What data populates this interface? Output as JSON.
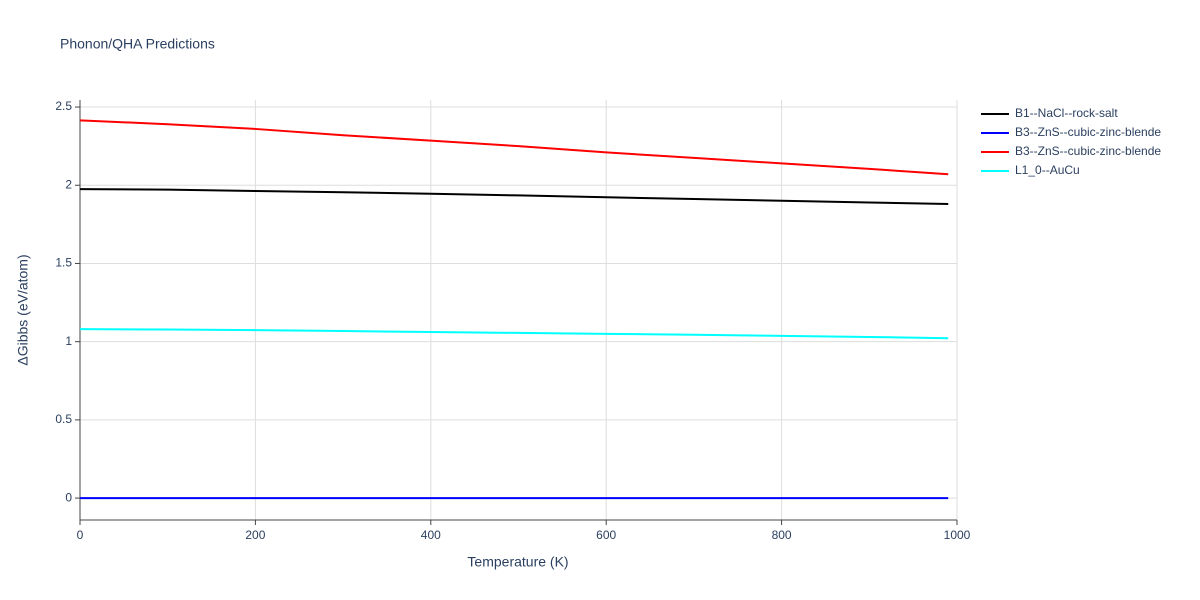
{
  "chart_data": {
    "type": "line",
    "title": "Phonon/QHA Predictions",
    "x_label": "Temperature (K)",
    "y_label": "ΔGibbs (eV/atom)",
    "x": [
      0,
      100,
      200,
      300,
      400,
      500,
      600,
      700,
      800,
      900,
      990
    ],
    "series": [
      {
        "name": "B1--NaCl--rock-salt",
        "color": "#000000",
        "values": [
          1.975,
          1.972,
          1.963,
          1.955,
          1.946,
          1.935,
          1.923,
          1.912,
          1.901,
          1.89,
          1.88
        ]
      },
      {
        "name": "B3--ZnS--cubic-zinc-blende",
        "color": "#0000ff",
        "values": [
          0,
          0,
          0,
          0,
          0,
          0,
          0,
          0,
          0,
          0,
          0
        ]
      },
      {
        "name": "B3--ZnS--cubic-zinc-blende",
        "color": "#ff0000",
        "values": [
          2.415,
          2.39,
          2.36,
          2.32,
          2.285,
          2.25,
          2.21,
          2.175,
          2.14,
          2.105,
          2.07
        ]
      },
      {
        "name": "L1_0--AuCu",
        "color": "#00ffff",
        "values": [
          1.08,
          1.078,
          1.074,
          1.068,
          1.062,
          1.056,
          1.05,
          1.044,
          1.037,
          1.03,
          1.022
        ]
      }
    ],
    "xlim": [
      0,
      1000
    ],
    "xticks": [
      0,
      200,
      400,
      600,
      800,
      1000
    ],
    "ylim": [
      -0.14,
      2.545
    ],
    "yticks": [
      0,
      0.5,
      1,
      1.5,
      2,
      2.5
    ],
    "grid": true,
    "legend": "right"
  }
}
